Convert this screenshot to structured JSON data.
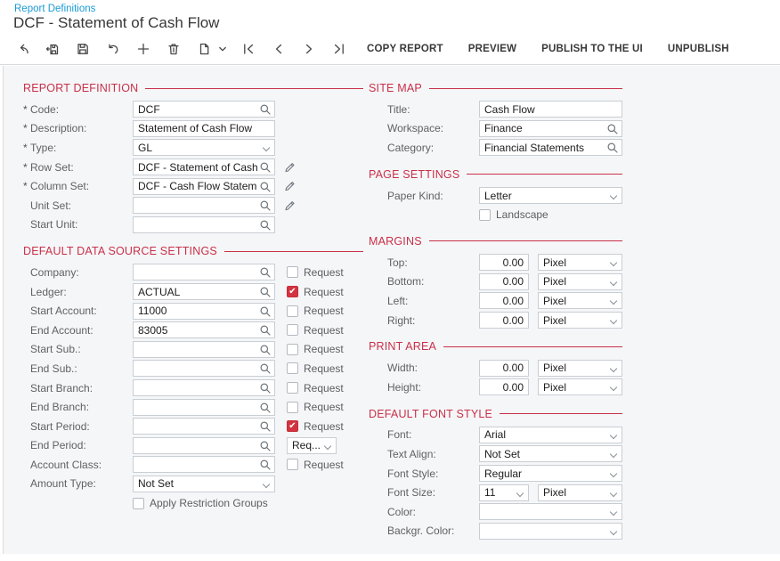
{
  "page": {
    "breadcrumb": "Report Definitions",
    "title": "DCF - Statement of Cash Flow"
  },
  "colors": {
    "accent_red": "#c93048",
    "link_blue": "#1a9ad6",
    "checkbox_red": "#d3333f",
    "content_bg": "#f5f6f8"
  },
  "toolbar": {
    "icons": [
      {
        "name": "back-icon"
      },
      {
        "name": "save-close-icon"
      },
      {
        "name": "save-icon"
      },
      {
        "name": "undo-icon"
      },
      {
        "name": "add-icon"
      },
      {
        "name": "delete-icon"
      },
      {
        "name": "copy-icon",
        "dropdown": true
      },
      {
        "name": "first-record-icon"
      },
      {
        "name": "prev-record-icon"
      },
      {
        "name": "next-record-icon"
      },
      {
        "name": "last-record-icon"
      }
    ],
    "buttons": [
      "COPY REPORT",
      "PREVIEW",
      "PUBLISH TO THE UI",
      "UNPUBLISH"
    ]
  },
  "columns": {
    "left": {
      "sections": [
        {
          "title": "REPORT DEFINITION",
          "rows": [
            {
              "label": "Code:",
              "required": true,
              "value": "DCF",
              "control": "lookup"
            },
            {
              "label": "Description:",
              "required": true,
              "value": "Statement of Cash Flow",
              "control": "text"
            },
            {
              "label": "Type:",
              "required": true,
              "value": "GL",
              "control": "select"
            },
            {
              "label": "Row Set:",
              "required": true,
              "value": "DCF - Statement of Cash Flow",
              "control": "lookup",
              "edit": true
            },
            {
              "label": "Column Set:",
              "required": true,
              "value": "DCF - Cash Flow Statement",
              "control": "lookup",
              "edit": true
            },
            {
              "label": "Unit Set:",
              "required": false,
              "value": "",
              "control": "lookup",
              "edit": true
            },
            {
              "label": "Start Unit:",
              "required": false,
              "value": "",
              "control": "lookup"
            }
          ]
        },
        {
          "title": "DEFAULT DATA SOURCE SETTINGS",
          "rows": [
            {
              "label": "Company:",
              "value": "",
              "control": "lookup",
              "aside": {
                "type": "checkbox",
                "label": "Request",
                "checked": false
              }
            },
            {
              "label": "Ledger:",
              "value": "ACTUAL",
              "control": "lookup",
              "aside": {
                "type": "checkbox",
                "label": "Request",
                "checked": true
              }
            },
            {
              "label": "Start Account:",
              "value": "11000",
              "control": "lookup",
              "aside": {
                "type": "checkbox",
                "label": "Request",
                "checked": false
              }
            },
            {
              "label": "End Account:",
              "value": "83005",
              "control": "lookup",
              "aside": {
                "type": "checkbox",
                "label": "Request",
                "checked": false
              }
            },
            {
              "label": "Start Sub.:",
              "value": "",
              "control": "lookup",
              "aside": {
                "type": "checkbox",
                "label": "Request",
                "checked": false
              }
            },
            {
              "label": "End Sub.:",
              "value": "",
              "control": "lookup",
              "aside": {
                "type": "checkbox",
                "label": "Request",
                "checked": false
              }
            },
            {
              "label": "Start Branch:",
              "value": "",
              "control": "lookup",
              "aside": {
                "type": "checkbox",
                "label": "Request",
                "checked": false
              }
            },
            {
              "label": "End Branch:",
              "value": "",
              "control": "lookup",
              "aside": {
                "type": "checkbox",
                "label": "Request",
                "checked": false
              }
            },
            {
              "label": "Start Period:",
              "value": "",
              "control": "lookup",
              "aside": {
                "type": "checkbox",
                "label": "Request",
                "checked": true
              }
            },
            {
              "label": "End Period:",
              "value": "",
              "control": "lookup",
              "aside": {
                "type": "select",
                "value": "Req..."
              }
            },
            {
              "label": "Account Class:",
              "value": "",
              "control": "lookup",
              "aside": {
                "type": "checkbox",
                "label": "Request",
                "checked": false
              }
            },
            {
              "label": "Amount Type:",
              "value": "Not Set",
              "control": "select"
            },
            {
              "label": "",
              "control": "checkbox-row",
              "value": "Apply Restriction Groups",
              "checked": false
            }
          ]
        }
      ]
    },
    "right": {
      "sections": [
        {
          "title": "SITE MAP",
          "rows": [
            {
              "label": "Title:",
              "value": "Cash Flow",
              "control": "text"
            },
            {
              "label": "Workspace:",
              "value": "Finance",
              "control": "lookup"
            },
            {
              "label": "Category:",
              "value": "Financial Statements",
              "control": "lookup"
            }
          ]
        },
        {
          "title": "PAGE SETTINGS",
          "rows": [
            {
              "label": "Paper Kind:",
              "value": "Letter",
              "control": "select"
            },
            {
              "label": "",
              "control": "checkbox-row",
              "value": "Landscape",
              "checked": false
            }
          ]
        },
        {
          "title": "MARGINS",
          "rows": [
            {
              "label": "Top:",
              "value": "0.00",
              "unit": "Pixel",
              "control": "unit"
            },
            {
              "label": "Bottom:",
              "value": "0.00",
              "unit": "Pixel",
              "control": "unit"
            },
            {
              "label": "Left:",
              "value": "0.00",
              "unit": "Pixel",
              "control": "unit"
            },
            {
              "label": "Right:",
              "value": "0.00",
              "unit": "Pixel",
              "control": "unit"
            }
          ]
        },
        {
          "title": "PRINT AREA",
          "rows": [
            {
              "label": "Width:",
              "value": "0.00",
              "unit": "Pixel",
              "control": "unit"
            },
            {
              "label": "Height:",
              "value": "0.00",
              "unit": "Pixel",
              "control": "unit"
            }
          ]
        },
        {
          "title": "DEFAULT FONT STYLE",
          "rows": [
            {
              "label": "Font:",
              "value": "Arial",
              "control": "select"
            },
            {
              "label": "Text Align:",
              "value": "Not Set",
              "control": "select"
            },
            {
              "label": "Font Style:",
              "value": "Regular",
              "control": "select"
            },
            {
              "label": "Font Size:",
              "value": "11",
              "unit": "Pixel",
              "control": "size"
            },
            {
              "label": "Color:",
              "value": "",
              "control": "select"
            },
            {
              "label": "Backgr. Color:",
              "value": "",
              "control": "select"
            }
          ]
        }
      ]
    }
  }
}
